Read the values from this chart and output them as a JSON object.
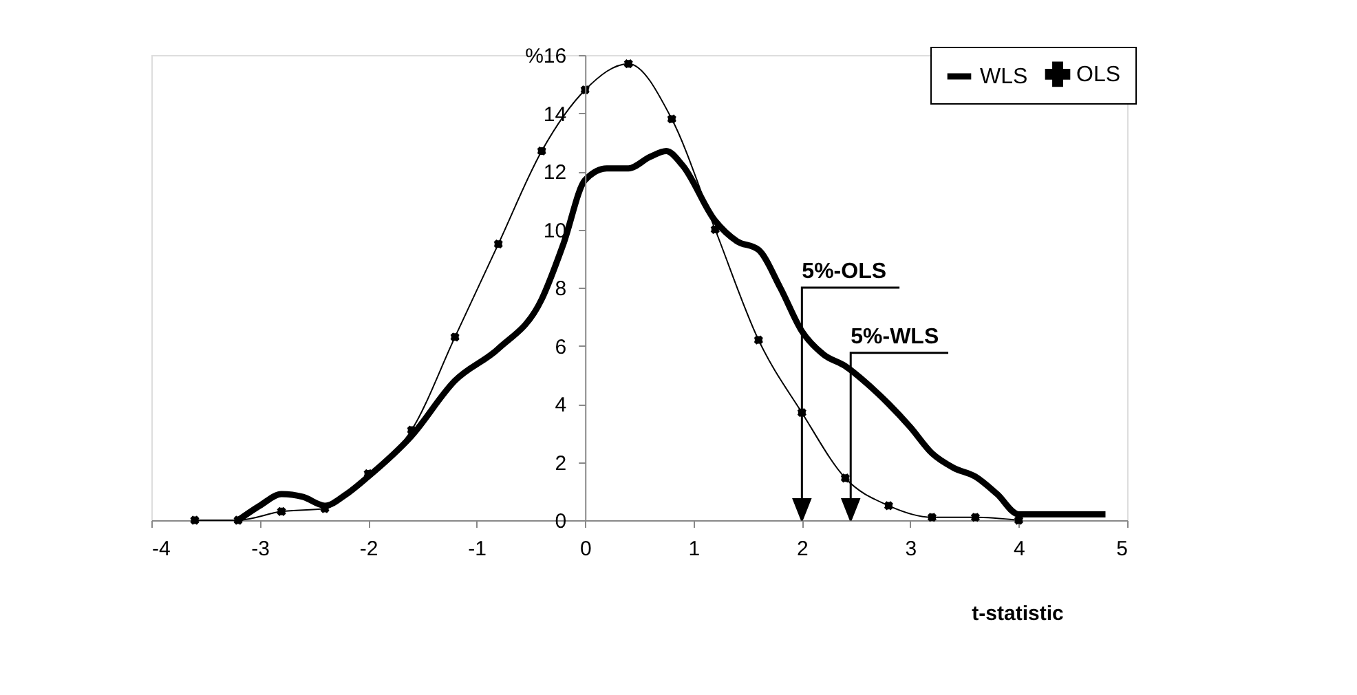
{
  "chart_data": {
    "type": "line",
    "xlabel": "t-statistic",
    "xlim": [
      -4,
      5
    ],
    "xticks": [
      -4,
      -3,
      -2,
      -1,
      0,
      1,
      2,
      3,
      4,
      5
    ],
    "ylim": [
      0,
      16
    ],
    "yticks": [
      0,
      2,
      4,
      6,
      8,
      10,
      12,
      14,
      {
        "value": 16,
        "label": "%16"
      }
    ],
    "grid": false,
    "legend": "top right",
    "series": [
      {
        "name": "WLS",
        "color": "#000000",
        "marker": "none",
        "x": [
          -3.2,
          -3.0,
          -2.8,
          -2.6,
          -2.4,
          -2.2,
          -2.0,
          -1.6,
          -1.2,
          -0.8,
          -0.4,
          -0.2,
          0,
          0.2,
          0.4,
          0.6,
          0.75,
          0.9,
          1.2,
          1.4,
          1.6,
          1.8,
          2.0,
          2.2,
          2.4,
          2.6,
          2.8,
          3.0,
          3.2,
          3.4,
          3.6,
          3.8,
          4.0,
          4.2,
          4.8
        ],
        "values": [
          0,
          0.5,
          0.9,
          0.8,
          0.5,
          0.9,
          1.5,
          2.9,
          4.8,
          5.9,
          7.6,
          9.5,
          11.7,
          12.1,
          12.1,
          12.5,
          12.7,
          12.2,
          10.3,
          9.6,
          9.3,
          8.0,
          6.5,
          5.7,
          5.3,
          4.7,
          4.0,
          3.2,
          2.3,
          1.8,
          1.5,
          0.9,
          0.2,
          0.2,
          0.2
        ]
      },
      {
        "name": "OLS",
        "color": "#000000",
        "marker": "cross",
        "x": [
          -3.6,
          -3.2,
          -2.8,
          -2.4,
          -2.0,
          -1.6,
          -1.2,
          -0.8,
          -0.4,
          0,
          0.4,
          0.8,
          1.2,
          1.6,
          2.0,
          2.4,
          2.8,
          3.2,
          3.6,
          4.0
        ],
        "values": [
          0,
          0,
          0.3,
          0.4,
          1.6,
          3.1,
          6.3,
          9.5,
          12.7,
          14.8,
          15.7,
          13.8,
          10.0,
          6.2,
          3.7,
          1.45,
          0.5,
          0.1,
          0.1,
          0
        ]
      }
    ],
    "ref_lines": [
      {
        "axis": "x",
        "value": 2.0,
        "label": "5%-OLS",
        "color": "#000000"
      },
      {
        "axis": "x",
        "value": 2.45,
        "label": "5%-WLS",
        "color": "#000000"
      }
    ]
  }
}
